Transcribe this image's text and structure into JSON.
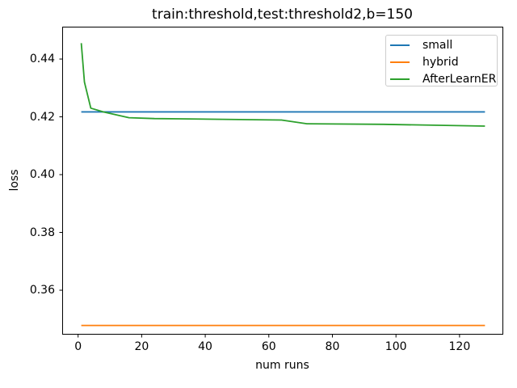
{
  "chart_data": {
    "type": "line",
    "title": "train:threshold,test:threshold2,b=150",
    "xlabel": "num runs",
    "ylabel": "loss",
    "xlim": [
      -5.0,
      133.5
    ],
    "ylim": [
      0.3449,
      0.4512
    ],
    "grid": false,
    "legend_position": "upper right",
    "axis_color": "#000000",
    "x_ticks": [
      {
        "value": 0,
        "label": "0"
      },
      {
        "value": 20,
        "label": "20"
      },
      {
        "value": 40,
        "label": "40"
      },
      {
        "value": 60,
        "label": "60"
      },
      {
        "value": 80,
        "label": "80"
      },
      {
        "value": 100,
        "label": "100"
      },
      {
        "value": 120,
        "label": "120"
      }
    ],
    "y_ticks": [
      {
        "value": 0.36,
        "label": "0.36"
      },
      {
        "value": 0.38,
        "label": "0.38"
      },
      {
        "value": 0.4,
        "label": "0.40"
      },
      {
        "value": 0.42,
        "label": "0.42"
      },
      {
        "value": 0.44,
        "label": "0.44"
      }
    ],
    "series": [
      {
        "name": "small",
        "color": "#1f77b4",
        "x": [
          1,
          128
        ],
        "y": [
          0.4217,
          0.4217
        ]
      },
      {
        "name": "hybrid",
        "color": "#ff7f0e",
        "x": [
          1,
          128
        ],
        "y": [
          0.3478,
          0.3478
        ]
      },
      {
        "name": "AfterLearnER",
        "color": "#2ca02c",
        "x": [
          1,
          2,
          4,
          8,
          16,
          24,
          32,
          48,
          64,
          72,
          96,
          112,
          128
        ],
        "y": [
          0.4455,
          0.432,
          0.423,
          0.4217,
          0.4197,
          0.4194,
          0.4193,
          0.4191,
          0.4189,
          0.4176,
          0.4174,
          0.4171,
          0.4168
        ]
      }
    ]
  }
}
